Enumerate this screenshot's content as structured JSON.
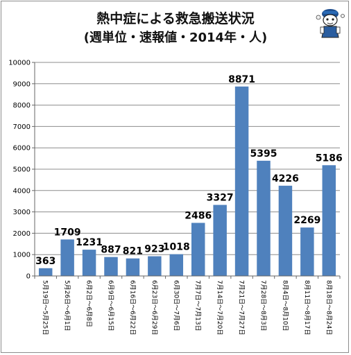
{
  "title_line1": "熱中症による救急搬送状況",
  "title_line2": "(週単位・速報値・2014年・人)",
  "mascot_icon": "cartoon-mascot-icon",
  "chart_data": {
    "type": "bar",
    "title": "熱中症による救急搬送状況 (週単位・速報値・2014年・人)",
    "xlabel": "",
    "ylabel": "",
    "ylim": [
      0,
      10000
    ],
    "yticks": [
      0,
      1000,
      2000,
      3000,
      4000,
      5000,
      6000,
      7000,
      8000,
      9000,
      10000
    ],
    "grid": true,
    "legend": "none",
    "bar_color": "#4f81bd",
    "categories": [
      "5月19日〜5月25日",
      "5月26日〜6月1日",
      "6月2日〜6月8日",
      "6月9日〜6月15日",
      "6月16日〜6月22日",
      "6月23日〜6月29日",
      "6月30日〜7月6日",
      "7月7日〜7月13日",
      "7月14日〜7月20日",
      "7月21日〜7月27日",
      "7月28日〜8月3日",
      "8月4日〜8月10日",
      "8月11日〜8月17日",
      "8月18日〜8月24日"
    ],
    "values": [
      363,
      1709,
      1231,
      887,
      821,
      923,
      1018,
      2486,
      3327,
      8871,
      5395,
      4226,
      2269,
      5186
    ]
  }
}
